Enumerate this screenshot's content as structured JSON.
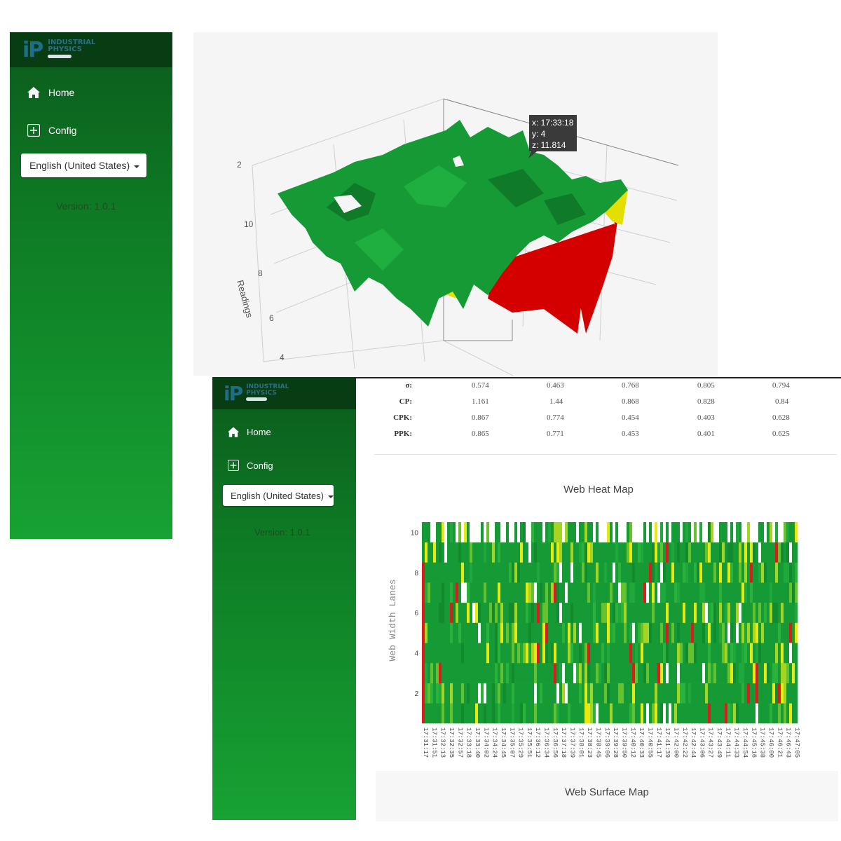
{
  "brand": {
    "logo_mark": "iP",
    "logo_line1": "INDUSTRIAL",
    "logo_line2": "PHYSICS"
  },
  "sidebar": {
    "home_label": "Home",
    "config_label": "Config",
    "language": "English (United States)",
    "version": "Version: 1.0.1"
  },
  "surface_plot": {
    "z_axis_title": "Readings",
    "z_ticks": [
      "4",
      "6",
      "8",
      "10"
    ],
    "tooltip": {
      "x": "x: 17:33:18",
      "y": "y: 4",
      "z": "z: 11.814"
    },
    "colors": {
      "low": "#d40000",
      "mid": "#e3e000",
      "high": "#169a35"
    }
  },
  "stats": {
    "rows": [
      {
        "label": "σ:",
        "values": [
          "0.574",
          "0.463",
          "0.768",
          "0.805",
          "0.794"
        ]
      },
      {
        "label": "CP:",
        "values": [
          "1.161",
          "1.44",
          "0.868",
          "0.828",
          "0.84"
        ]
      },
      {
        "label": "CPK:",
        "values": [
          "0.867",
          "0.774",
          "0.454",
          "0.403",
          "0.628"
        ]
      },
      {
        "label": "PPK:",
        "values": [
          "0.865",
          "0.771",
          "0.453",
          "0.401",
          "0.625"
        ]
      }
    ]
  },
  "heatmap": {
    "title": "Web Heat Map",
    "ylabel": "Web Width Lanes",
    "y_ticks": [
      "2",
      "4",
      "6",
      "8",
      "10"
    ],
    "x_ticks": [
      "17:31:17",
      "17:31:51",
      "17:32:13",
      "17:32:35",
      "17:32:57",
      "17:33:18",
      "17:33:40",
      "17:34:02",
      "17:34:24",
      "17:34:45",
      "17:35:07",
      "17:35:29",
      "17:35:51",
      "17:36:12",
      "17:36:34",
      "17:36:56",
      "17:37:18",
      "17:37:39",
      "17:38:01",
      "17:38:23",
      "17:38:45",
      "17:39:06",
      "17:39:28",
      "17:39:50",
      "17:40:12",
      "17:40:33",
      "17:40:55",
      "17:41:17",
      "17:41:39",
      "17:42:00",
      "17:42:22",
      "17:42:44",
      "17:43:06",
      "17:43:27",
      "17:43:49",
      "17:44:11",
      "17:44:33",
      "17:44:54",
      "17:45:16",
      "17:45:38",
      "17:46:00",
      "17:46:21",
      "17:46:43",
      "17:47:05"
    ]
  },
  "surface_map": {
    "title": "Web Surface Map"
  }
}
